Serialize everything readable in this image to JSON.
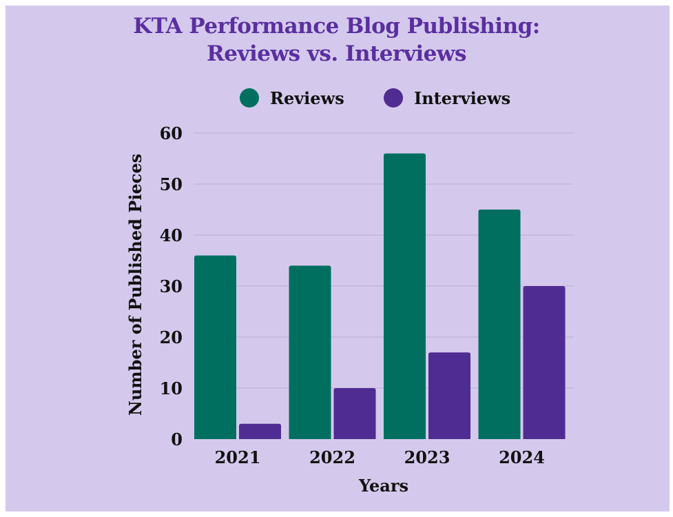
{
  "chart_data": {
    "type": "bar",
    "title_line1": "KTA Performance Blog Publishing:",
    "title_line2": "Reviews vs. Interviews",
    "xlabel": "Years",
    "ylabel": "Number of Published Pieces",
    "categories": [
      "2021",
      "2022",
      "2023",
      "2024"
    ],
    "series": [
      {
        "name": "Reviews",
        "color": "#006f60",
        "values": [
          36,
          34,
          56,
          45
        ]
      },
      {
        "name": "Interviews",
        "color": "#4f2c92",
        "values": [
          3,
          10,
          17,
          30
        ]
      }
    ],
    "ylim": [
      0,
      60
    ],
    "yticks": [
      "0",
      "10",
      "20",
      "30",
      "40",
      "50",
      "60"
    ],
    "grid": true,
    "legend_position": "top-center"
  },
  "colors": {
    "background": "#d4c9ec",
    "title": "#5a2fa0",
    "gridline": "#c3b6e0"
  }
}
